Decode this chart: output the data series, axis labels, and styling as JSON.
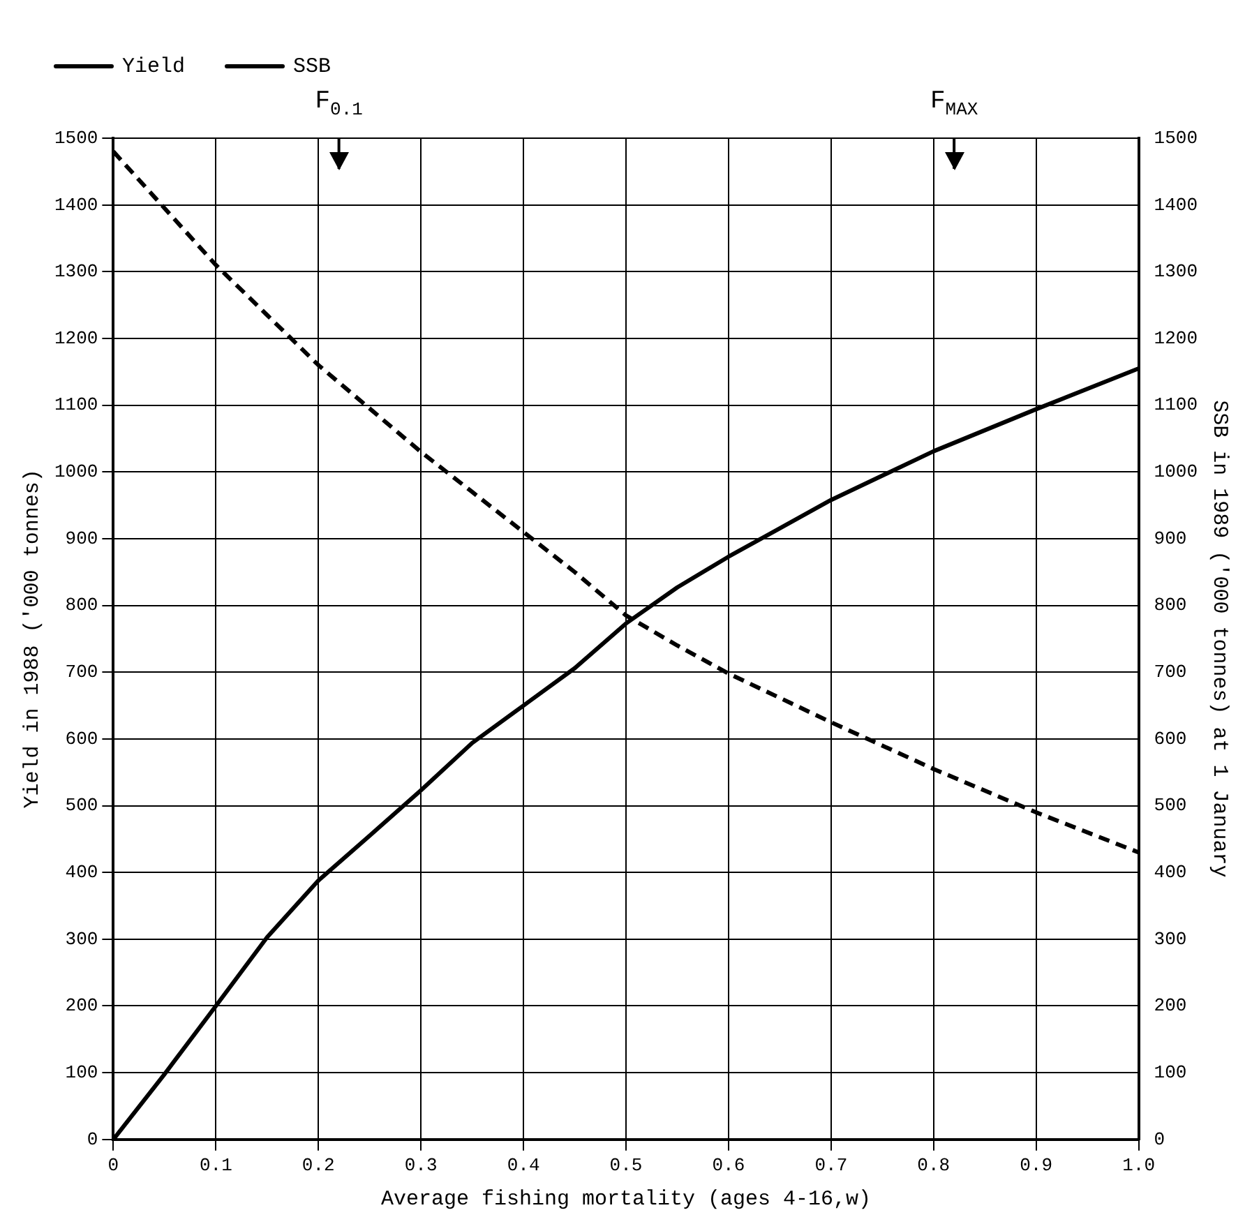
{
  "chart_data": {
    "type": "line",
    "xlabel": "Average fishing mortality (ages 4-16,w)",
    "ylabel": "Yield in 1988 ('000 tonnes)",
    "y2label": "SSB in 1989 ('000 tonnes) at 1 January",
    "x": [
      0,
      0.05,
      0.1,
      0.15,
      0.2,
      0.25,
      0.3,
      0.35,
      0.4,
      0.45,
      0.5,
      0.55,
      0.6,
      0.7,
      0.8,
      0.9,
      1.0
    ],
    "series": [
      {
        "name": "Yield",
        "color": "#000000",
        "line_style": "solid",
        "values": [
          0,
          98,
          200,
          303,
          388,
          455,
          523,
          594,
          650,
          706,
          773,
          827,
          873,
          958,
          1031,
          1094,
          1155
        ]
      },
      {
        "name": "SSB",
        "color": "#000000",
        "line_style": "dashed",
        "axis": "y2",
        "values": [
          1480,
          1395,
          1310,
          1235,
          1160,
          1095,
          1030,
          970,
          910,
          850,
          785,
          740,
          698,
          625,
          555,
          490,
          430
        ]
      }
    ],
    "xlim": [
      0,
      1
    ],
    "xticks": [
      0,
      0.1,
      0.2,
      0.3,
      0.4,
      0.5,
      0.6,
      0.7,
      0.8,
      0.9,
      {
        "value": 1,
        "label": "1.0"
      }
    ],
    "ylim": [
      0,
      1500
    ],
    "yticks": [
      0,
      100,
      200,
      300,
      400,
      500,
      600,
      700,
      800,
      900,
      1000,
      1100,
      1200,
      1300,
      1400,
      1500
    ],
    "y2lim": [
      0,
      1500
    ],
    "y2ticks": [
      0,
      100,
      200,
      300,
      400,
      500,
      600,
      700,
      800,
      900,
      1000,
      1100,
      1200,
      1300,
      1400,
      1500
    ],
    "ref_lines": [
      {
        "axis": "x",
        "value": 0.22,
        "label": "F$_{0.1}$"
      },
      {
        "axis": "x",
        "value": 0.82,
        "label": "F$_{MAX}$"
      }
    ],
    "grid": true,
    "legend": "top left",
    "marker": "none"
  }
}
